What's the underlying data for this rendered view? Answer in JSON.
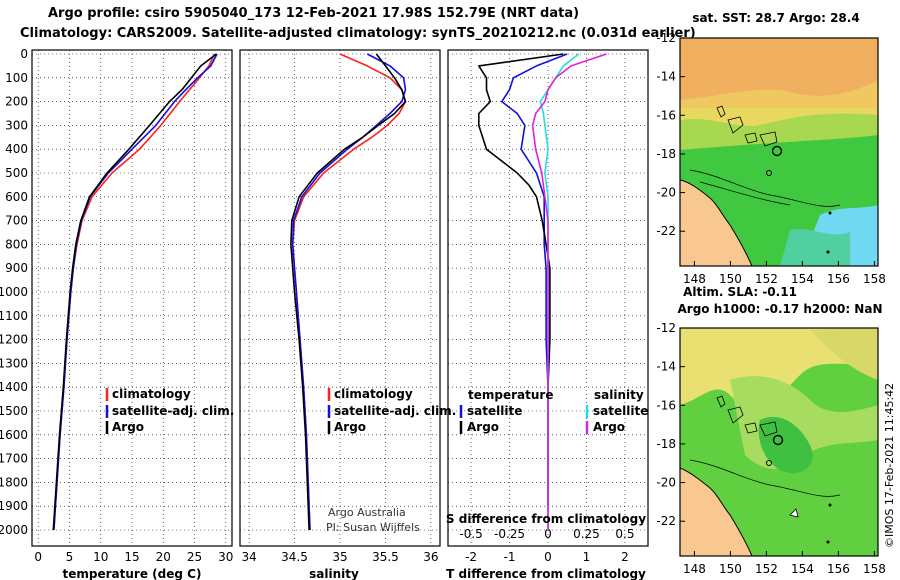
{
  "header": {
    "line1": "Argo profile: csiro 5905040_173 12-Feb-2021 17.98S 152.79E (NRT data)",
    "line2": "Climatology: CARS2009. Satellite-adjusted climatology: synTS_20210212.nc (0.031d earlier)"
  },
  "colors": {
    "argo": "#000000",
    "climatology": "#ff2020",
    "satellite": "#1010e0",
    "sat_salinity": "#20e0e0",
    "argo_salinity": "#e020e0"
  },
  "credit": {
    "line1": "Argo Australia",
    "line2": "PI: Susan Wijffels"
  },
  "watermark": "©IMOS 17-Feb-2021 11:45:42",
  "chart_data": [
    {
      "type": "line",
      "title": "",
      "xlabel": "temperature (deg C)",
      "ylabel": "",
      "xlim": [
        -1,
        31
      ],
      "ylim": [
        2000,
        0
      ],
      "xticks": [
        0,
        5,
        10,
        15,
        20,
        25,
        30
      ],
      "yticks": [
        0,
        100,
        200,
        300,
        400,
        500,
        600,
        700,
        800,
        900,
        1000,
        1100,
        1200,
        1300,
        1400,
        1500,
        1600,
        1700,
        1800,
        1900,
        2000
      ],
      "legend": [
        "climatology",
        "satellite-adj. clim.",
        "Argo"
      ],
      "legend_position": "lower-right",
      "series": [
        {
          "name": "climatology",
          "color": "red",
          "depth": [
            0,
            50,
            100,
            150,
            200,
            300,
            400,
            500,
            600,
            700,
            800,
            900,
            1000,
            1200,
            1400,
            1600,
            1800,
            2000
          ],
          "values": [
            28.2,
            27.3,
            25.8,
            24.2,
            22.6,
            19.6,
            16.2,
            11.8,
            8.6,
            7.0,
            6.2,
            5.6,
            5.2,
            4.6,
            4.1,
            3.5,
            3.0,
            2.5
          ]
        },
        {
          "name": "satellite-adj. clim.",
          "color": "blue",
          "depth": [
            0,
            50,
            100,
            150,
            200,
            300,
            400,
            500,
            600,
            700,
            800,
            900,
            1000,
            1200,
            1400,
            1600,
            1800,
            2000
          ],
          "values": [
            28.6,
            27.6,
            25.5,
            23.6,
            21.8,
            18.8,
            15.0,
            11.2,
            8.3,
            6.9,
            6.1,
            5.6,
            5.2,
            4.6,
            4.1,
            3.5,
            3.0,
            2.5
          ]
        },
        {
          "name": "Argo",
          "color": "black",
          "depth": [
            0,
            50,
            100,
            150,
            200,
            300,
            400,
            500,
            600,
            700,
            800,
            900,
            1000,
            1200,
            1400,
            1600,
            1800,
            2000
          ],
          "values": [
            28.5,
            26.0,
            24.5,
            23.0,
            21.0,
            17.8,
            14.5,
            11.0,
            8.2,
            6.8,
            6.0,
            5.5,
            5.1,
            4.5,
            4.0,
            3.4,
            2.9,
            2.4
          ]
        }
      ]
    },
    {
      "type": "line",
      "title": "",
      "xlabel": "salinity",
      "ylabel": "",
      "xlim": [
        33.9,
        36.1
      ],
      "ylim": [
        2000,
        0
      ],
      "xticks": [
        34,
        34.5,
        35,
        35.5,
        36
      ],
      "legend": [
        "climatology",
        "satellite-adj. clim.",
        "Argo"
      ],
      "legend_position": "lower-right",
      "series": [
        {
          "name": "climatology",
          "color": "red",
          "depth": [
            0,
            50,
            100,
            150,
            200,
            250,
            300,
            350,
            400,
            500,
            600,
            700,
            800,
            900,
            1000,
            1200,
            1400,
            1600,
            1800,
            2000
          ],
          "values": [
            35.0,
            35.3,
            35.55,
            35.68,
            35.72,
            35.65,
            35.52,
            35.35,
            35.15,
            34.82,
            34.6,
            34.5,
            34.48,
            34.5,
            34.52,
            34.56,
            34.6,
            34.63,
            34.65,
            34.67
          ]
        },
        {
          "name": "satellite-adj. clim.",
          "color": "blue",
          "depth": [
            0,
            50,
            100,
            150,
            200,
            250,
            300,
            350,
            400,
            500,
            600,
            700,
            800,
            900,
            1000,
            1200,
            1400,
            1600,
            1800,
            2000
          ],
          "values": [
            35.3,
            35.55,
            35.7,
            35.72,
            35.68,
            35.55,
            35.4,
            35.25,
            35.08,
            34.78,
            34.58,
            34.49,
            34.48,
            34.5,
            34.52,
            34.56,
            34.6,
            34.63,
            34.65,
            34.67
          ]
        },
        {
          "name": "Argo",
          "color": "black",
          "depth": [
            0,
            50,
            100,
            150,
            200,
            250,
            300,
            350,
            400,
            500,
            600,
            700,
            800,
            900,
            1000,
            1200,
            1400,
            1600,
            1800,
            2000
          ],
          "values": [
            35.4,
            35.5,
            35.6,
            35.68,
            35.72,
            35.6,
            35.42,
            35.25,
            35.05,
            34.75,
            34.55,
            34.47,
            34.46,
            34.48,
            34.5,
            34.55,
            34.59,
            34.62,
            34.64,
            34.66
          ]
        }
      ]
    },
    {
      "type": "line",
      "title": "",
      "xlabel": "T difference from climatology",
      "xlabel2": "S difference from climatology",
      "ylabel": "",
      "xlim": [
        -2.6,
        2.6
      ],
      "ylim": [
        2000,
        0
      ],
      "xticks": [
        -2,
        -1,
        0,
        1,
        2
      ],
      "xticks2": [
        -0.5,
        -0.25,
        0,
        0.25,
        0.5
      ],
      "xticklabels2": [
        "-0.5",
        "-0.25",
        "0",
        "0.25",
        "0.5"
      ],
      "legend_groups": [
        {
          "title": "temperature",
          "entries": [
            "satellite",
            "Argo"
          ]
        },
        {
          "title": "salinity",
          "entries": [
            "satellite",
            "Argo"
          ]
        }
      ],
      "series": [
        {
          "name": "temperature satellite",
          "color": "blue",
          "depth": [
            0,
            50,
            100,
            150,
            200,
            250,
            300,
            400,
            500,
            600,
            700,
            800,
            900,
            1000,
            1200,
            1400,
            1600,
            1800,
            1900
          ],
          "values": [
            0.5,
            -0.3,
            -0.9,
            -1.0,
            -1.2,
            -0.8,
            -0.6,
            -0.7,
            -0.3,
            -0.1,
            -0.1,
            -0.1,
            -0.05,
            -0.05,
            -0.05,
            0.0,
            0.0,
            0.0,
            0.0
          ]
        },
        {
          "name": "temperature Argo",
          "color": "black",
          "depth": [
            0,
            50,
            100,
            150,
            200,
            250,
            300,
            400,
            500,
            550,
            600,
            700,
            800,
            900,
            1000,
            1200,
            1400,
            1600,
            1800,
            1900
          ],
          "values": [
            0.4,
            -1.8,
            -1.6,
            -1.6,
            -1.5,
            -1.8,
            -1.8,
            -1.6,
            -0.8,
            -0.5,
            -0.3,
            -0.15,
            -0.05,
            0.05,
            0.05,
            0.05,
            0.0,
            0.0,
            0.0,
            0.0
          ]
        },
        {
          "name": "salinity satellite",
          "color": "cyan",
          "depth": [
            0,
            50,
            100,
            150,
            200,
            250,
            300,
            400,
            500,
            600,
            700,
            800,
            900,
            1000,
            1200,
            1400,
            1600,
            1800,
            2000
          ],
          "values": [
            0.2,
            0.1,
            0.05,
            0.0,
            -0.05,
            -0.03,
            -0.02,
            0.0,
            -0.02,
            0.0,
            0.0,
            0.0,
            0.0,
            0.0,
            0.0,
            0.0,
            0.0,
            0.0,
            0.0
          ]
        },
        {
          "name": "salinity Argo",
          "color": "magenta",
          "depth": [
            0,
            50,
            100,
            150,
            200,
            250,
            300,
            400,
            500,
            600,
            700,
            800,
            900,
            1000,
            1200,
            1400,
            1600,
            1800,
            2000
          ],
          "values": [
            0.38,
            0.15,
            0.05,
            0.0,
            -0.02,
            -0.08,
            -0.1,
            -0.08,
            -0.04,
            -0.02,
            0.0,
            0.0,
            0.0,
            0.0,
            0.0,
            0.0,
            0.0,
            0.0,
            0.0
          ]
        }
      ]
    },
    {
      "type": "heatmap",
      "title": "sat. SST: 28.7 Argo: 28.4",
      "xlim": [
        147.2,
        158.2
      ],
      "ylim": [
        -23.8,
        -12
      ],
      "xticks": [
        148,
        150,
        152,
        154,
        156,
        158
      ],
      "yticks": [
        -12,
        -14,
        -16,
        -18,
        -20,
        -22
      ]
    },
    {
      "type": "heatmap",
      "title": "Altim. SLA: -0.11",
      "subtitle": "Argo h1000: -0.17 h2000: NaN",
      "xlim": [
        147.2,
        158.2
      ],
      "ylim": [
        -23.8,
        -12
      ],
      "xticks": [
        148,
        150,
        152,
        154,
        156,
        158
      ],
      "yticks": [
        -12,
        -14,
        -16,
        -18,
        -20,
        -22
      ]
    }
  ]
}
